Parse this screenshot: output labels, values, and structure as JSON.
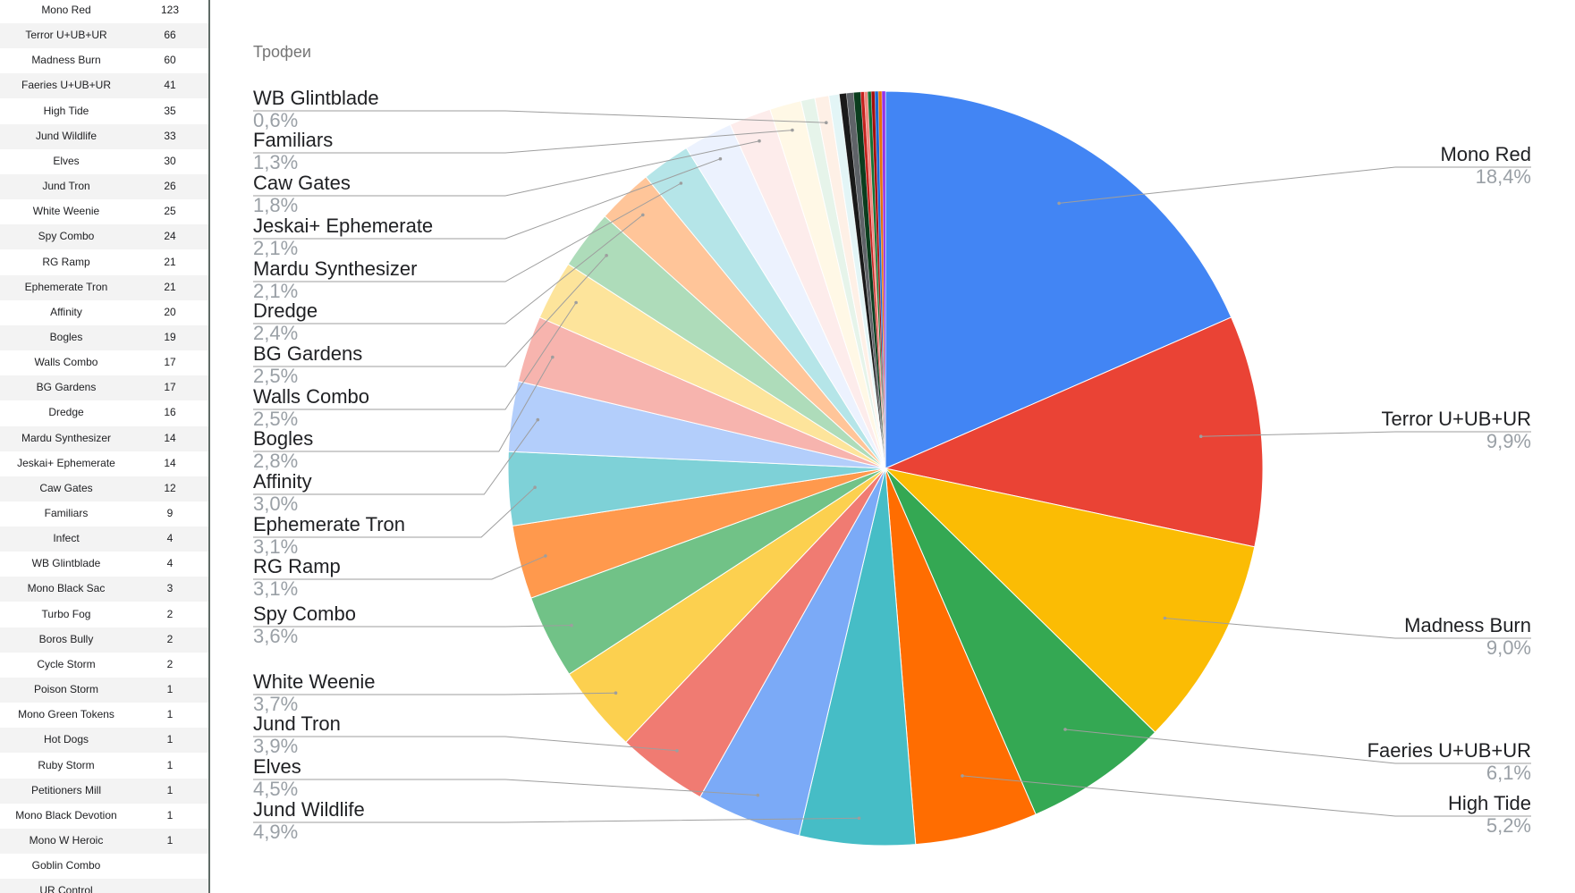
{
  "sheet": {
    "rows": [
      {
        "name": "Mono Red",
        "count": "123"
      },
      {
        "name": "Terror U+UB+UR",
        "count": "66"
      },
      {
        "name": "Madness Burn",
        "count": "60"
      },
      {
        "name": "Faeries U+UB+UR",
        "count": "41"
      },
      {
        "name": "High Tide",
        "count": "35"
      },
      {
        "name": "Jund Wildlife",
        "count": "33"
      },
      {
        "name": "Elves",
        "count": "30"
      },
      {
        "name": "Jund Tron",
        "count": "26"
      },
      {
        "name": "White Weenie",
        "count": "25"
      },
      {
        "name": "Spy Combo",
        "count": "24"
      },
      {
        "name": "RG Ramp",
        "count": "21"
      },
      {
        "name": "Ephemerate Tron",
        "count": "21"
      },
      {
        "name": "Affinity",
        "count": "20"
      },
      {
        "name": "Bogles",
        "count": "19"
      },
      {
        "name": "Walls Combo",
        "count": "17"
      },
      {
        "name": "BG Gardens",
        "count": "17"
      },
      {
        "name": "Dredge",
        "count": "16"
      },
      {
        "name": "Mardu Synthesizer",
        "count": "14"
      },
      {
        "name": "Jeskai+ Ephemerate",
        "count": "14"
      },
      {
        "name": "Caw Gates",
        "count": "12"
      },
      {
        "name": "Familiars",
        "count": "9"
      },
      {
        "name": "Infect",
        "count": "4"
      },
      {
        "name": "WB Glintblade",
        "count": "4"
      },
      {
        "name": "Mono Black Sac",
        "count": "3"
      },
      {
        "name": "Turbo Fog",
        "count": "2"
      },
      {
        "name": "Boros Bully",
        "count": "2"
      },
      {
        "name": "Cycle Storm",
        "count": "2"
      },
      {
        "name": "Poison Storm",
        "count": "1"
      },
      {
        "name": "Mono Green Tokens",
        "count": "1"
      },
      {
        "name": "Hot Dogs",
        "count": "1"
      },
      {
        "name": "Ruby Storm",
        "count": "1"
      },
      {
        "name": "Petitioners Mill",
        "count": "1"
      },
      {
        "name": "Mono Black Devotion",
        "count": "1"
      },
      {
        "name": "Mono W Heroic",
        "count": "1"
      },
      {
        "name": "Goblin Combo",
        "count": ""
      },
      {
        "name": "UR Control",
        "count": ""
      }
    ]
  },
  "chart_data": {
    "type": "pie",
    "title": "Трофеи",
    "slices": [
      {
        "label": "Mono Red",
        "value": 123,
        "pct": "18,4%",
        "color": "#4285f4"
      },
      {
        "label": "Terror U+UB+UR",
        "value": 66,
        "pct": "9,9%",
        "color": "#ea4335"
      },
      {
        "label": "Madness Burn",
        "value": 60,
        "pct": "9,0%",
        "color": "#fbbc04"
      },
      {
        "label": "Faeries U+UB+UR",
        "value": 41,
        "pct": "6,1%",
        "color": "#34a853"
      },
      {
        "label": "High Tide",
        "value": 35,
        "pct": "5,2%",
        "color": "#ff6d01"
      },
      {
        "label": "Jund Wildlife",
        "value": 33,
        "pct": "4,9%",
        "color": "#46bdc6"
      },
      {
        "label": "Elves",
        "value": 30,
        "pct": "4,5%",
        "color": "#7baaf7"
      },
      {
        "label": "Jund Tron",
        "value": 26,
        "pct": "3,9%",
        "color": "#f07b72"
      },
      {
        "label": "White Weenie",
        "value": 25,
        "pct": "3,7%",
        "color": "#fcd04f"
      },
      {
        "label": "Spy Combo",
        "value": 24,
        "pct": "3,6%",
        "color": "#71c287"
      },
      {
        "label": "RG Ramp",
        "value": 21,
        "pct": "3,1%",
        "color": "#ff994d"
      },
      {
        "label": "Ephemerate Tron",
        "value": 21,
        "pct": "3,1%",
        "color": "#7ed1d7"
      },
      {
        "label": "Affinity",
        "value": 20,
        "pct": "3,0%",
        "color": "#b3cefb"
      },
      {
        "label": "Bogles",
        "value": 19,
        "pct": "2,8%",
        "color": "#f7b4ae"
      },
      {
        "label": "Walls Combo",
        "value": 17,
        "pct": "2,5%",
        "color": "#fde49b"
      },
      {
        "label": "BG Gardens",
        "value": 17,
        "pct": "2,5%",
        "color": "#aedcba"
      },
      {
        "label": "Dredge",
        "value": 16,
        "pct": "2,4%",
        "color": "#ffc599"
      },
      {
        "label": "Mardu Synthesizer",
        "value": 14,
        "pct": "2,1%",
        "color": "#b5e5e8"
      },
      {
        "label": "Jeskai+ Ephemerate",
        "value": 14,
        "pct": "2,1%",
        "color": "#ecf2fe"
      },
      {
        "label": "Caw Gates",
        "value": 12,
        "pct": "1,8%",
        "color": "#fdeceb"
      },
      {
        "label": "Familiars",
        "value": 9,
        "pct": "1,3%",
        "color": "#fff8e6"
      },
      {
        "label": "Infect",
        "value": 4,
        "color": "#e6f4ea"
      },
      {
        "label": "WB Glintblade",
        "value": 4,
        "pct": "0,6%",
        "color": "#fef0e6"
      },
      {
        "label": "Mono Black Sac",
        "value": 3,
        "color": "#e3f5f6"
      },
      {
        "label": "Turbo Fog",
        "value": 2,
        "color": "#1a1a1a"
      },
      {
        "label": "Boros Bully",
        "value": 2,
        "color": "#5f6368"
      },
      {
        "label": "Cycle Storm",
        "value": 2,
        "color": "#0b3d1e"
      },
      {
        "label": "Poison Storm",
        "value": 1,
        "color": "#c5221f"
      },
      {
        "label": "Mono Green Tokens",
        "value": 1,
        "color": "#f28b82"
      },
      {
        "label": "Hot Dogs",
        "value": 1,
        "color": "#137333"
      },
      {
        "label": "Ruby Storm",
        "value": 1,
        "color": "#a50e0e"
      },
      {
        "label": "Petitioners Mill",
        "value": 1,
        "color": "#1967d2"
      },
      {
        "label": "Mono Black Devotion",
        "value": 1,
        "color": "#e8710a"
      },
      {
        "label": "Mono W Heroic",
        "value": 1,
        "color": "#9334e6"
      }
    ],
    "legend": "labels with leader lines",
    "colors": {
      "label": "#202124",
      "pct": "#9aa0a6",
      "title": "#757575",
      "leader": "#9e9e9e"
    }
  }
}
